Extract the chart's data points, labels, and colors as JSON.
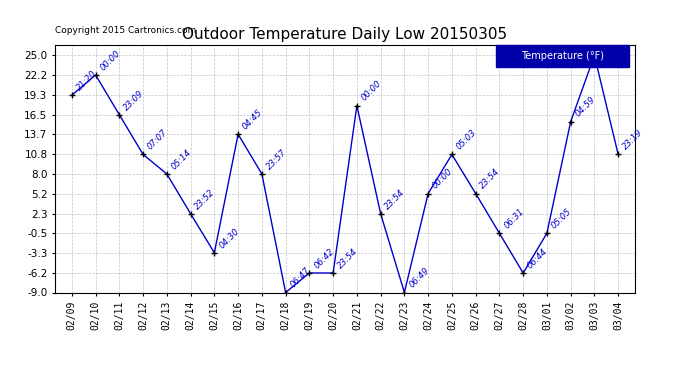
{
  "title": "Outdoor Temperature Daily Low 20150305",
  "copyright": "Copyright 2015 Cartronics.com",
  "legend_label": "Temperature (°F)",
  "x_labels": [
    "02/09",
    "02/10",
    "02/11",
    "02/12",
    "02/13",
    "02/14",
    "02/15",
    "02/16",
    "02/17",
    "02/18",
    "02/19",
    "02/20",
    "02/21",
    "02/22",
    "02/23",
    "02/24",
    "02/25",
    "02/26",
    "02/27",
    "02/28",
    "03/01",
    "03/02",
    "03/03",
    "03/04"
  ],
  "y_values": [
    19.3,
    22.2,
    16.5,
    10.8,
    8.0,
    2.3,
    -3.3,
    13.7,
    8.0,
    -9.0,
    -6.2,
    -6.2,
    17.8,
    2.3,
    -9.0,
    5.2,
    10.8,
    5.2,
    -0.5,
    -6.2,
    -0.5,
    15.5,
    25.0,
    10.8
  ],
  "time_labels": [
    "21:20",
    "00:00",
    "23:09",
    "07:07",
    "05:14",
    "23:52",
    "04:30",
    "04:45",
    "23:57",
    "06:47",
    "06:42",
    "23:54",
    "00:00",
    "23:54",
    "06:49",
    "00:00",
    "05:03",
    "23:54",
    "06:31",
    "06:44",
    "05:05",
    "04:59",
    "",
    "23:19"
  ],
  "y_ticks": [
    25.0,
    22.2,
    19.3,
    16.5,
    13.7,
    10.8,
    8.0,
    5.2,
    2.3,
    -0.5,
    -3.3,
    -6.2,
    -9.0
  ],
  "line_color": "#0000cc",
  "marker_color": "#000000",
  "grid_color": "#aaaaaa",
  "bg_color": "#ffffff",
  "legend_bg": "#0000aa",
  "legend_text_color": "#ffffff",
  "title_color": "#000000",
  "label_color": "#0000cc",
  "copyright_color": "#000000",
  "figsize": [
    6.9,
    3.75
  ],
  "dpi": 100
}
